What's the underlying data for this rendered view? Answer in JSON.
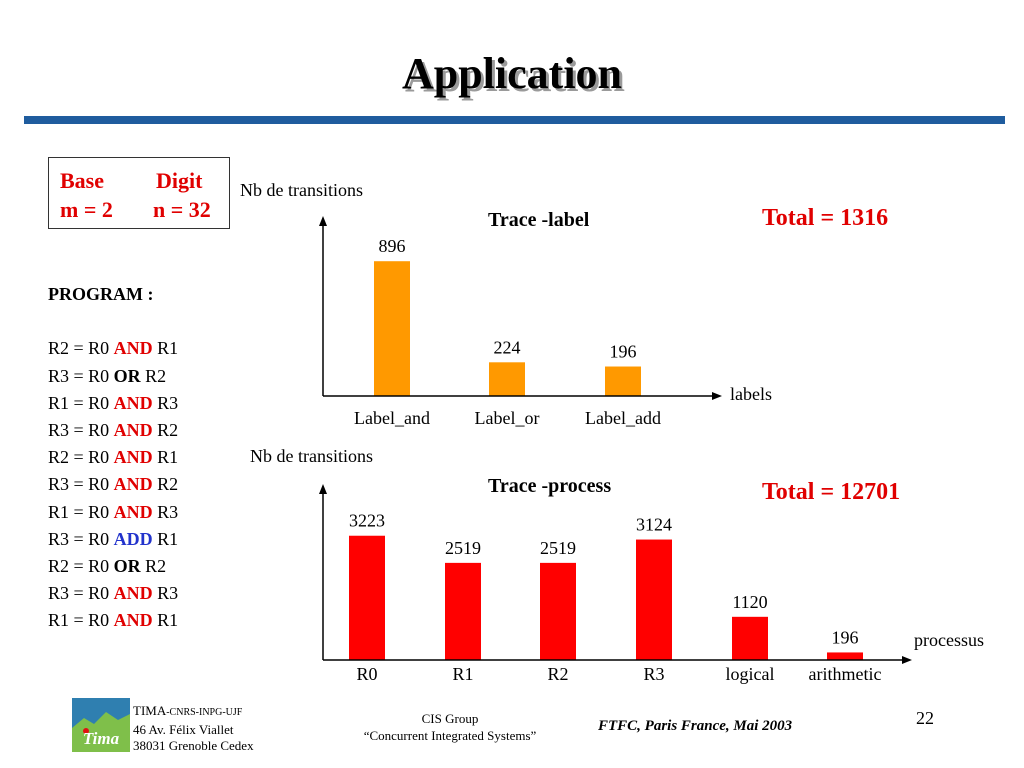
{
  "slide": {
    "title": "Application",
    "page_number": "22"
  },
  "params": {
    "col1_header": "Base",
    "col1_value": "m = 2",
    "col2_header": "Digit",
    "col2_value": "n = 32"
  },
  "program": {
    "header": "PROGRAM :",
    "lines": [
      {
        "pre": "R2 = R0 ",
        "op": "AND",
        "post": " R1",
        "color": "red"
      },
      {
        "pre": "R3 = R0 ",
        "op": "OR",
        "post": " R2",
        "color": "black"
      },
      {
        "pre": "R1 = R0 ",
        "op": "AND",
        "post": " R3",
        "color": "red"
      },
      {
        "pre": "R3 = R0 ",
        "op": "AND",
        "post": " R2",
        "color": "red"
      },
      {
        "pre": "R2 = R0 ",
        "op": "AND",
        "post": " R1",
        "color": "red"
      },
      {
        "pre": "R3 = R0 ",
        "op": "AND",
        "post": " R2",
        "color": "red"
      },
      {
        "pre": "R1 = R0 ",
        "op": "AND",
        "post": " R3",
        "color": "red"
      },
      {
        "pre": "R3 = R0 ",
        "op": "ADD",
        "post": " R1",
        "color": "blue"
      },
      {
        "pre": "R2 = R0 ",
        "op": "OR",
        "post": " R2",
        "color": "black"
      },
      {
        "pre": "R3 = R0 ",
        "op": "AND",
        "post": " R3",
        "color": "red"
      },
      {
        "pre": "R1 = R0 ",
        "op": "AND",
        "post": " R1",
        "color": "red"
      }
    ]
  },
  "colors": {
    "accent_rule": "#1f5c9e",
    "label_bars": "#ff9900",
    "process_bars": "#ff0000",
    "highlight_text": "#e00000"
  },
  "chart_data": [
    {
      "type": "bar",
      "title": "Trace -label",
      "ylabel": "Nb de transitions",
      "xlabel": "labels",
      "total_label": "Total = 1316",
      "categories": [
        "Label_and",
        "Label_or",
        "Label_add"
      ],
      "values": [
        896,
        224,
        196
      ],
      "value_labels": [
        "896",
        "224",
        "196"
      ],
      "bar_color": "#ff9900",
      "ylim": [
        0,
        1150
      ],
      "grid": false,
      "legend": "none"
    },
    {
      "type": "bar",
      "title": "Trace -process",
      "ylabel": "Nb de transitions",
      "xlabel": "processus",
      "total_label": "Total = 12701",
      "categories": [
        "R0",
        "R1",
        "R2",
        "R3",
        "logical",
        "arithmetic"
      ],
      "values": [
        3223,
        2519,
        2519,
        3124,
        1120,
        196
      ],
      "value_labels": [
        "3223",
        "2519",
        "2519",
        "3124",
        "1120",
        "196"
      ],
      "bar_color": "#ff0000",
      "ylim": [
        0,
        4020
      ],
      "grid": false,
      "legend": "none"
    }
  ],
  "footer": {
    "org_name": "TIMA",
    "org_suffix": "-CNRS-INPG-UJF",
    "address_line1": "46 Av. Félix Viallet",
    "address_line2": "38031 Grenoble Cedex",
    "logo_text": "Tima",
    "group_line1": "CIS Group",
    "group_line2": "“Concurrent Integrated Systems”",
    "conference": "FTFC, Paris France, Mai 2003"
  }
}
